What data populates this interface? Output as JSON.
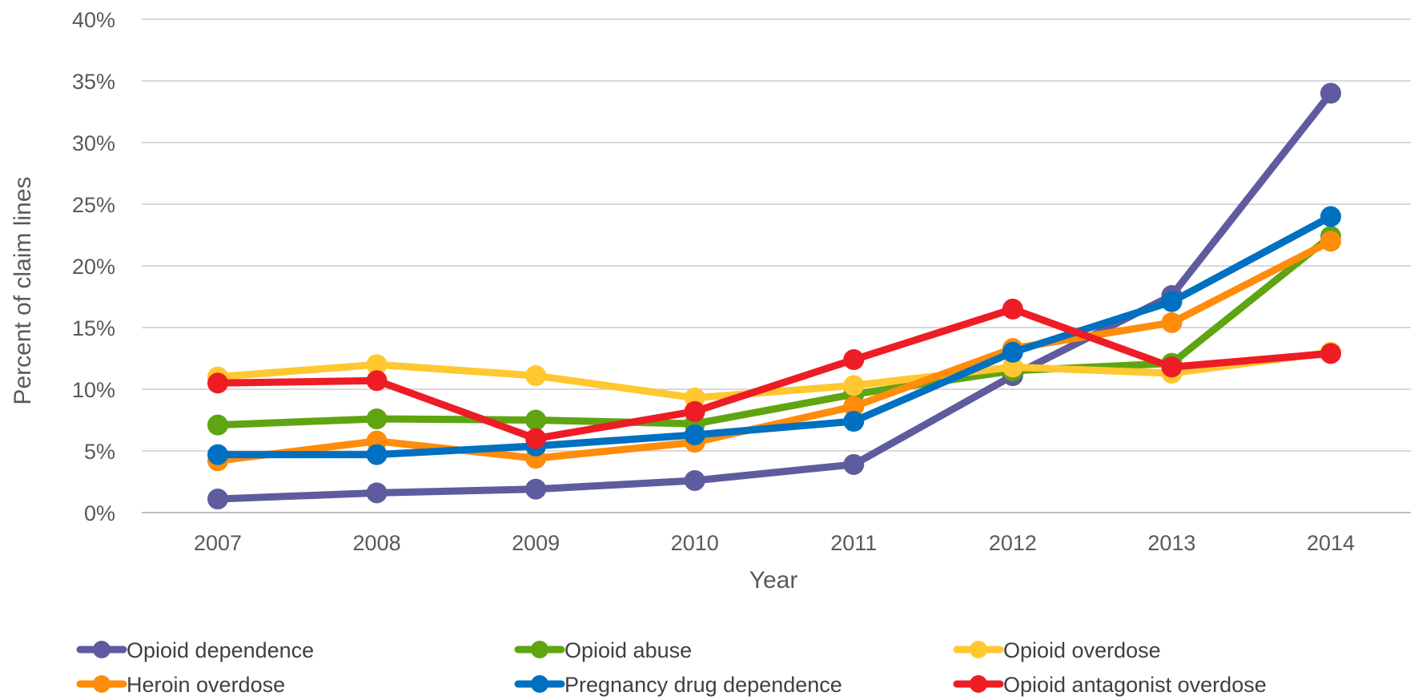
{
  "chart_data": {
    "type": "line",
    "title": "",
    "xlabel": "Year",
    "ylabel": "Percent of claim lines",
    "x": [
      "2007",
      "2008",
      "2009",
      "2010",
      "2011",
      "2012",
      "2013",
      "2014"
    ],
    "ylim": [
      0,
      40
    ],
    "yticks": [
      0,
      5,
      10,
      15,
      20,
      25,
      30,
      35,
      40
    ],
    "ytick_labels": [
      "0%",
      "5%",
      "10%",
      "15%",
      "20%",
      "25%",
      "30%",
      "35%",
      "40%"
    ],
    "grid": "horizontal",
    "legend_position": "bottom",
    "series": [
      {
        "name": "Opioid dependence",
        "color": "#5E5B9E",
        "values": [
          1.1,
          1.6,
          1.9,
          2.6,
          3.9,
          11.1,
          17.6,
          34.0
        ]
      },
      {
        "name": "Opioid abuse",
        "color": "#5EA511",
        "values": [
          7.1,
          7.6,
          7.5,
          7.2,
          9.6,
          11.5,
          12.1,
          22.4
        ]
      },
      {
        "name": "Opioid overdose",
        "color": "#FFC830",
        "values": [
          11.0,
          12.0,
          11.1,
          9.3,
          10.3,
          11.8,
          11.3,
          13.0
        ]
      },
      {
        "name": "Heroin overdose",
        "color": "#FF8C0A",
        "values": [
          4.2,
          5.8,
          4.4,
          5.7,
          8.6,
          13.3,
          15.4,
          22.0
        ]
      },
      {
        "name": "Pregnancy drug dependence",
        "color": "#0070C0",
        "values": [
          4.7,
          4.7,
          5.4,
          6.3,
          7.4,
          13.0,
          17.1,
          24.0
        ]
      },
      {
        "name": "Opioid antagonist overdose",
        "color": "#EE1C25",
        "values": [
          10.5,
          10.7,
          6.0,
          8.2,
          12.4,
          16.5,
          11.8,
          12.9
        ]
      }
    ]
  }
}
